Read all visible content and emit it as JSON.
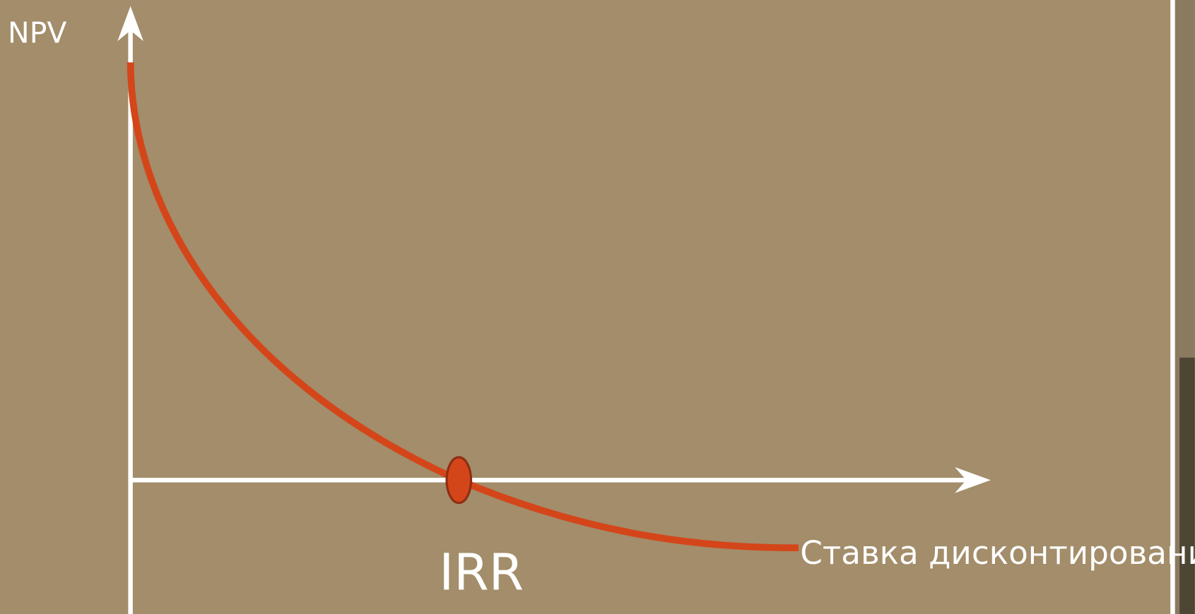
{
  "y_axis_label": "NPV",
  "x_axis_label": "Ставка дисконтирования",
  "point_label": "IRR"
}
